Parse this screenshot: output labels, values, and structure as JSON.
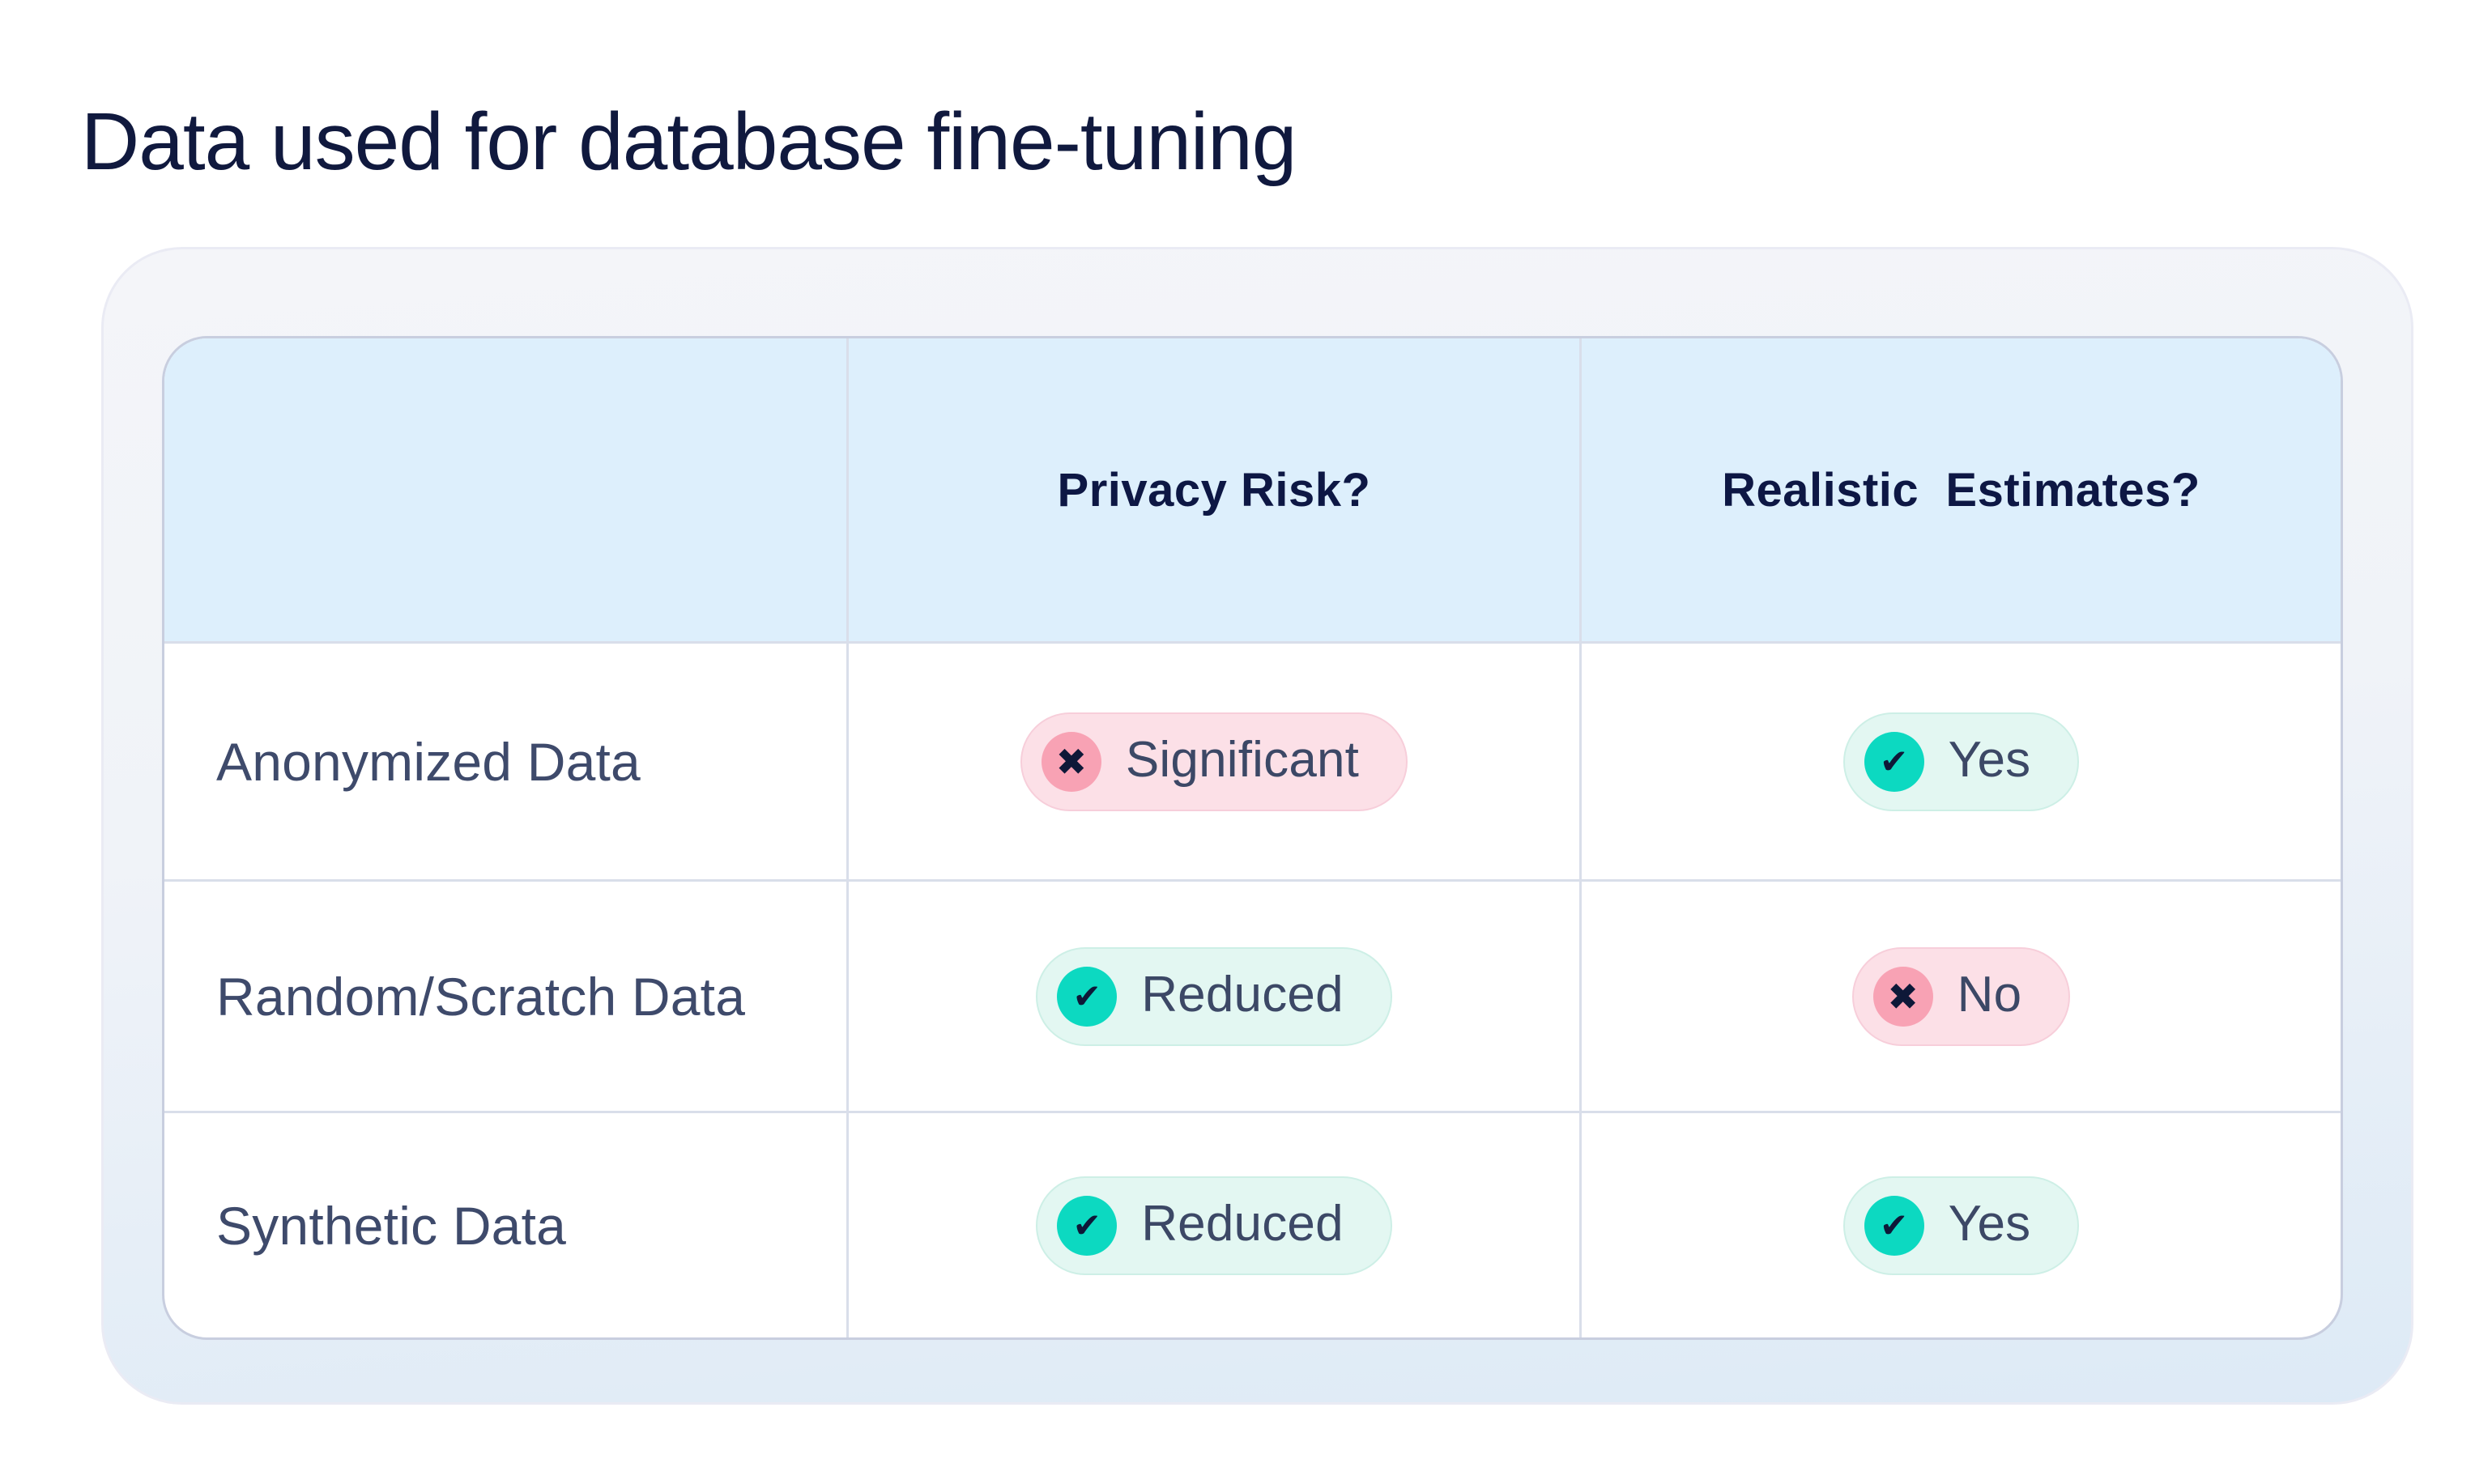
{
  "page": {
    "title": "Data used for database fine-tuning"
  },
  "table": {
    "headers": {
      "col0": "",
      "col1": "Privacy Risk?",
      "col2": "Realistic  Estimates?"
    },
    "rows": [
      {
        "label": "Anonymized Data",
        "privacy_risk": {
          "text": "Significant",
          "status": "negative",
          "icon": "x-circle"
        },
        "realistic_estimates": {
          "text": "Yes",
          "status": "positive",
          "icon": "check-circle"
        }
      },
      {
        "label": "Random/Scratch Data",
        "privacy_risk": {
          "text": "Reduced",
          "status": "positive",
          "icon": "check-circle"
        },
        "realistic_estimates": {
          "text": "No",
          "status": "negative",
          "icon": "x-circle"
        }
      },
      {
        "label": "Synthetic Data",
        "privacy_risk": {
          "text": "Reduced",
          "status": "positive",
          "icon": "check-circle"
        },
        "realistic_estimates": {
          "text": "Yes",
          "status": "positive",
          "icon": "check-circle"
        }
      }
    ]
  },
  "colors": {
    "title_text": "#10193E",
    "header_bg": "#DDEFFC",
    "header_text": "#0D1744",
    "row_label_text": "#3E4A6B",
    "badge_text": "#3C4866",
    "positive_pill_bg": "#E3F7F2",
    "positive_circle": "#0CD9C1",
    "negative_pill_bg": "#FCE0E7",
    "negative_circle": "#F8A2B4",
    "icon_glyph": "#0E1838",
    "table_border": "#C8CEDF",
    "cell_divider": "#D9DEEA",
    "card_bg_top": "#F4F5F9",
    "card_bg_bottom": "#DDEAF6"
  },
  "chart_data": {
    "type": "table",
    "title": "Data used for database fine-tuning",
    "columns": [
      "",
      "Privacy Risk?",
      "Realistic Estimates?"
    ],
    "rows": [
      [
        "Anonymized Data",
        "Significant",
        "Yes"
      ],
      [
        "Random/Scratch Data",
        "Reduced",
        "No"
      ],
      [
        "Synthetic Data",
        "Reduced",
        "Yes"
      ]
    ],
    "cell_statuses": [
      [
        "",
        "negative",
        "positive"
      ],
      [
        "",
        "positive",
        "negative"
      ],
      [
        "",
        "positive",
        "positive"
      ]
    ],
    "legend_position": "none",
    "grid": true
  }
}
